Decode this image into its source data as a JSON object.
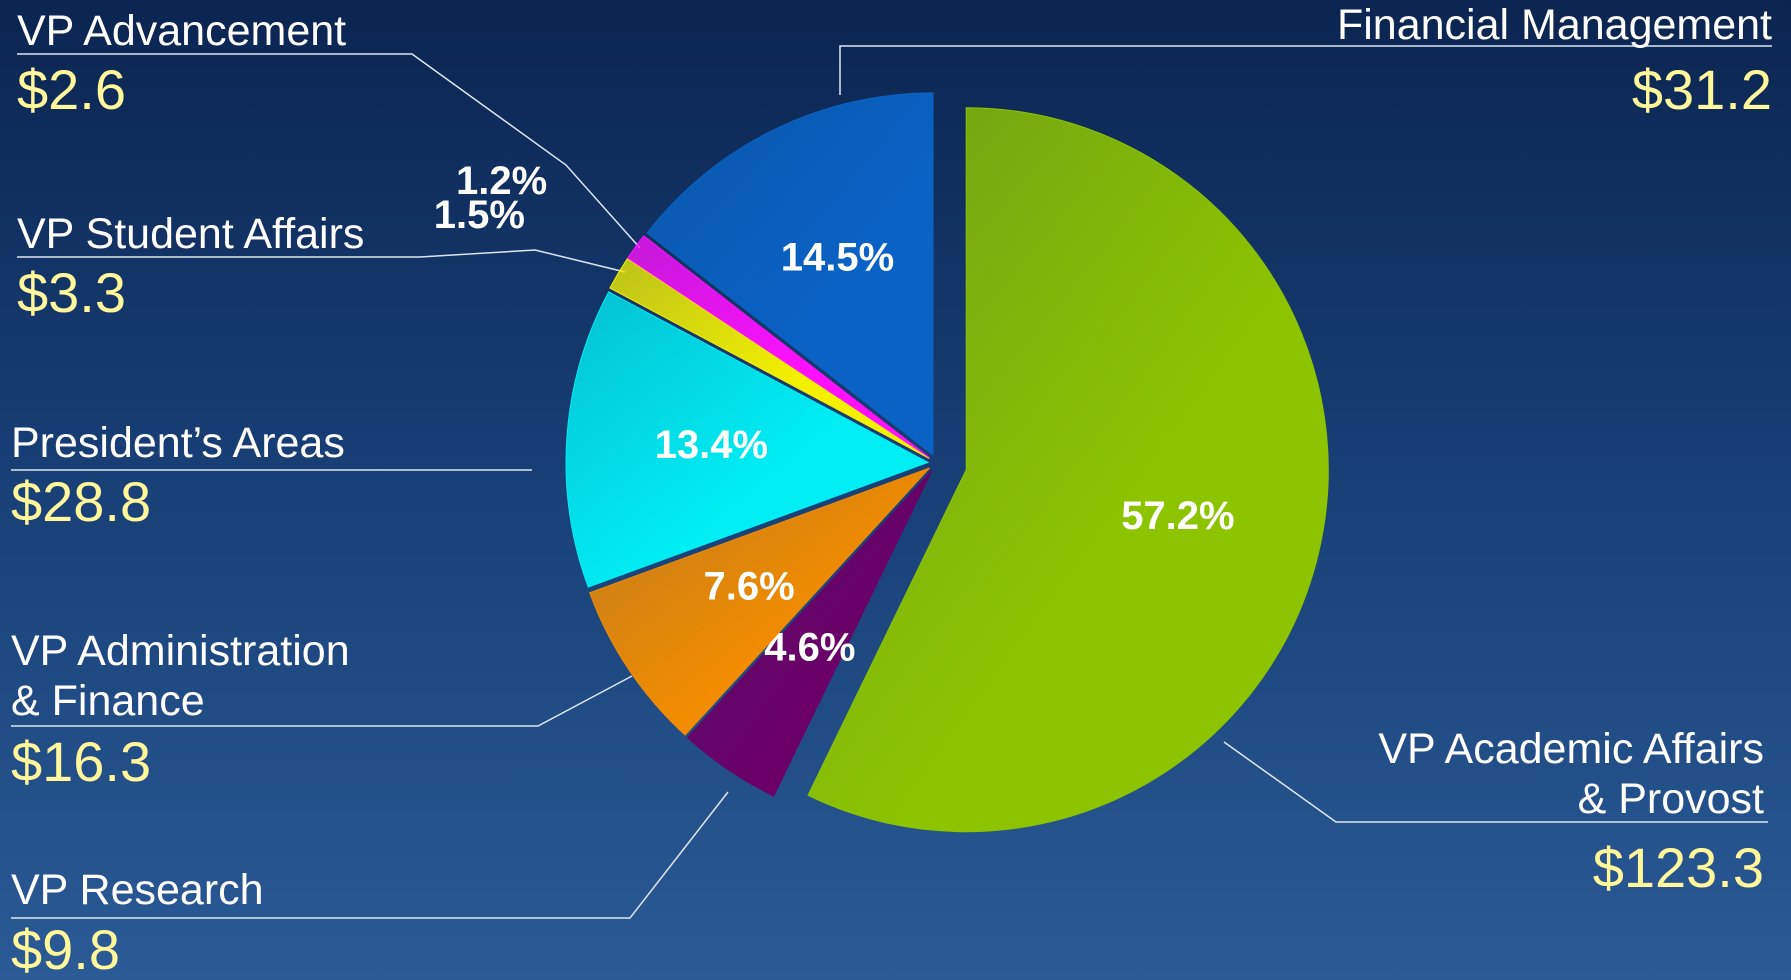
{
  "chart_data": {
    "type": "pie",
    "categories": [
      "VP Academic Affairs\n& Provost",
      "VP Research",
      "VP Administration\n& Finance",
      "President’s Areas",
      "VP Student Affairs",
      "VP Advancement",
      "Financial Management"
    ],
    "values": [
      57.2,
      4.6,
      7.6,
      13.4,
      1.5,
      1.2,
      14.5
    ],
    "value_labels": [
      "57.2%",
      "4.6%",
      "7.6%",
      "13.4%",
      "1.5%",
      "1.2%",
      "14.5%"
    ],
    "amounts": [
      "$123.3",
      "$9.8",
      "$16.3",
      "$28.8",
      "$3.3",
      "$2.6",
      "$31.2"
    ],
    "colors": [
      "#8cc400",
      "#6a0068",
      "#f28c00",
      "#00eef4",
      "#f4f000",
      "#ff10ff",
      "#0a62c4"
    ]
  }
}
